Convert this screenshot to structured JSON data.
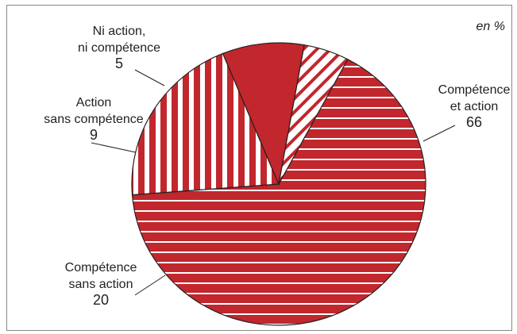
{
  "chart_data": {
    "type": "pie",
    "unit_label": "en %",
    "slices": [
      {
        "label_lines": [
          "Compétence",
          "et action"
        ],
        "value": 66,
        "value_text": "66",
        "pattern": "horizontal-stripes"
      },
      {
        "label_lines": [
          "Compétence",
          "sans action"
        ],
        "value": 20,
        "value_text": "20",
        "pattern": "vertical-stripes"
      },
      {
        "label_lines": [
          "Action",
          "sans compétence"
        ],
        "value": 9,
        "value_text": "9",
        "pattern": "solid"
      },
      {
        "label_lines": [
          "Ni action,",
          "ni compétence"
        ],
        "value": 5,
        "value_text": "5",
        "pattern": "diagonal-stripes"
      }
    ],
    "colors": {
      "fill": "#c1272d",
      "stripe": "#ffffff",
      "border": "#222222"
    }
  }
}
